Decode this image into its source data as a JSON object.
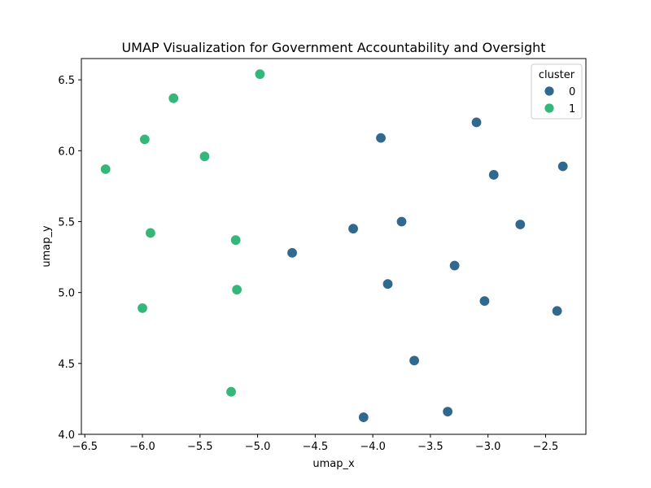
{
  "chart_data": {
    "type": "scatter",
    "title": "UMAP Visualization for Government Accountability and Oversight",
    "xlabel": "umap_x",
    "ylabel": "umap_y",
    "xlim": [
      -6.53,
      -2.15
    ],
    "ylim": [
      4.0,
      6.65
    ],
    "xticks": [
      -6.5,
      -6.0,
      -5.5,
      -5.0,
      -4.5,
      -4.0,
      -3.5,
      -3.0,
      -2.5
    ],
    "xtick_labels": [
      "−6.5",
      "−6.0",
      "−5.5",
      "−5.0",
      "−4.5",
      "−4.0",
      "−3.5",
      "−3.0",
      "−2.5"
    ],
    "yticks": [
      4.0,
      4.5,
      5.0,
      5.5,
      6.0,
      6.5
    ],
    "ytick_labels": [
      "4.0",
      "4.5",
      "5.0",
      "5.5",
      "6.0",
      "6.5"
    ],
    "grid": false,
    "legend": {
      "title": "cluster",
      "placement": "top-right"
    },
    "series": [
      {
        "name": "0",
        "color": "#31688e",
        "points": [
          {
            "x": -3.1,
            "y": 6.2
          },
          {
            "x": -3.93,
            "y": 6.09
          },
          {
            "x": -2.95,
            "y": 5.83
          },
          {
            "x": -2.35,
            "y": 5.89
          },
          {
            "x": -3.75,
            "y": 5.5
          },
          {
            "x": -4.17,
            "y": 5.45
          },
          {
            "x": -2.72,
            "y": 5.48
          },
          {
            "x": -4.7,
            "y": 5.28
          },
          {
            "x": -3.29,
            "y": 5.19
          },
          {
            "x": -3.87,
            "y": 5.06
          },
          {
            "x": -3.03,
            "y": 4.94
          },
          {
            "x": -2.4,
            "y": 4.87
          },
          {
            "x": -3.64,
            "y": 4.52
          },
          {
            "x": -3.35,
            "y": 4.16
          },
          {
            "x": -4.08,
            "y": 4.12
          }
        ]
      },
      {
        "name": "1",
        "color": "#35b779",
        "points": [
          {
            "x": -4.98,
            "y": 6.54
          },
          {
            "x": -5.73,
            "y": 6.37
          },
          {
            "x": -5.98,
            "y": 6.08
          },
          {
            "x": -5.46,
            "y": 5.96
          },
          {
            "x": -6.32,
            "y": 5.87
          },
          {
            "x": -5.93,
            "y": 5.42
          },
          {
            "x": -5.19,
            "y": 5.37
          },
          {
            "x": -5.18,
            "y": 5.02
          },
          {
            "x": -6.0,
            "y": 4.89
          },
          {
            "x": -5.23,
            "y": 4.3
          }
        ]
      }
    ]
  }
}
